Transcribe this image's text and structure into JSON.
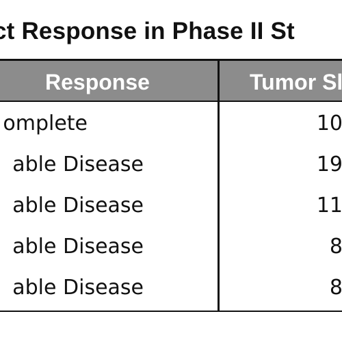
{
  "title": "ct Response in Phase II St",
  "table": {
    "headers": {
      "response": "Response",
      "tumor": "Tumor Sl"
    },
    "rows": [
      {
        "response": "omplete",
        "tumor": "10"
      },
      {
        "response": "able Disease",
        "tumor": "19"
      },
      {
        "response": "able Disease",
        "tumor": "11"
      },
      {
        "response": "able Disease",
        "tumor": "8"
      },
      {
        "response": "able Disease",
        "tumor": "8"
      }
    ]
  },
  "colors": {
    "header_bg": "#8c8c8c",
    "header_text": "#ffffff",
    "border": "#111111",
    "text": "#111111"
  }
}
